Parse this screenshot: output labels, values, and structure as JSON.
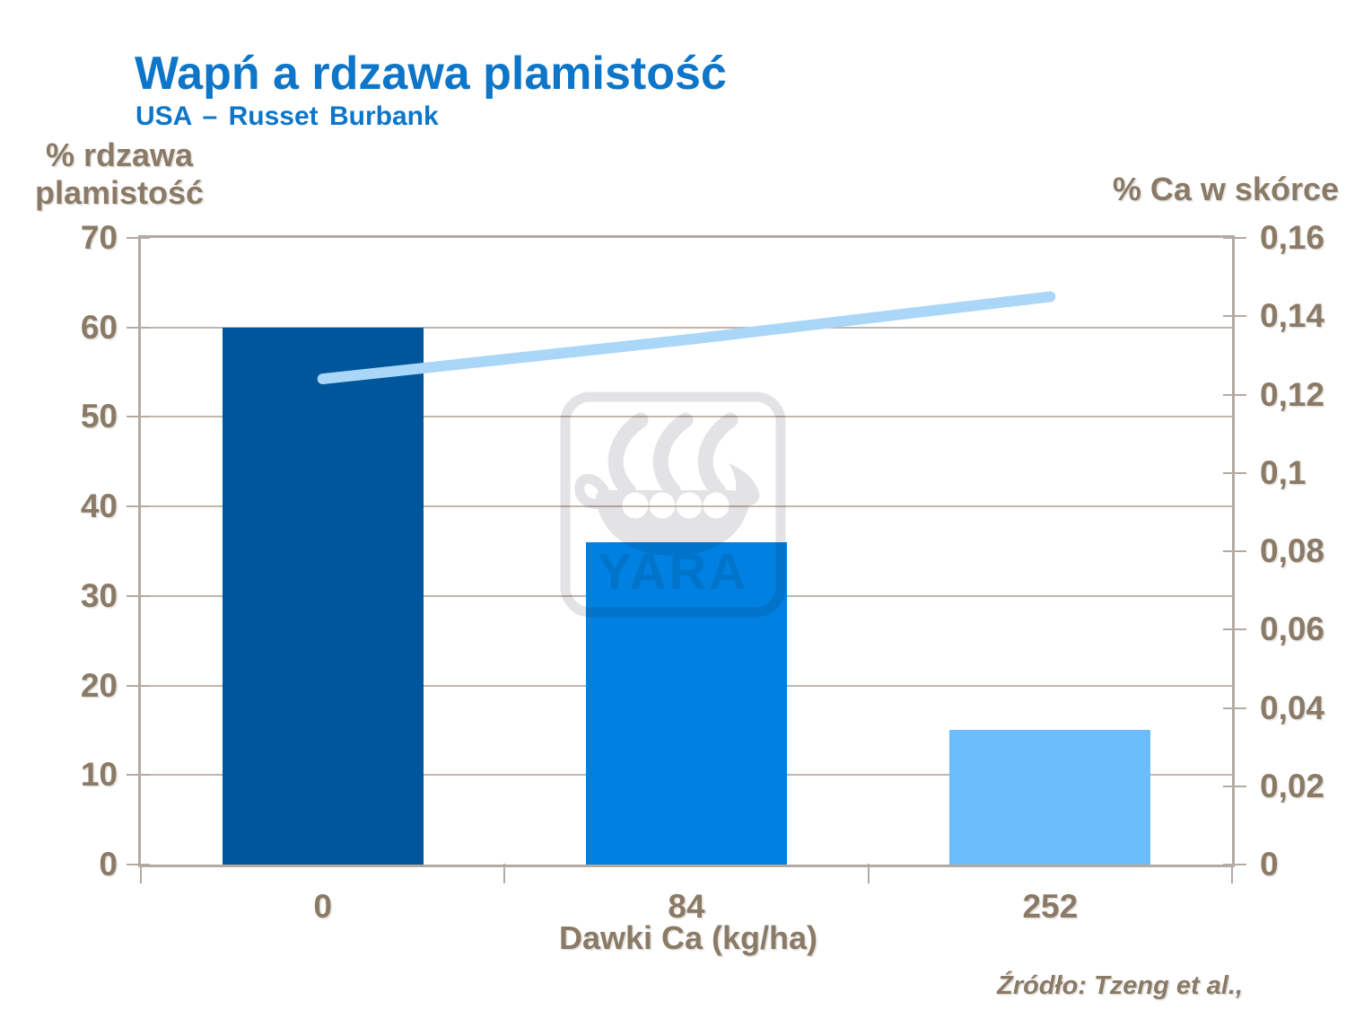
{
  "header": {
    "title": "Wapń a rdzawa plamistość",
    "subtitle": "USA – Russet Burbank"
  },
  "axes": {
    "left_title_line1": "% rdzawa",
    "left_title_line2": "plamistość",
    "right_title": "% Ca w skórce"
  },
  "source_note": "Źródło: Tzeng et al.,",
  "watermark": {
    "label": "YARA"
  },
  "colors": {
    "title_blue": "#0e76c8",
    "label_brown": "#8a7a66",
    "plot_border": "#b3aaa2",
    "gridline": "#c0b7ad",
    "bar_dark_blue": "#00569b",
    "bar_medium_blue": "#0081e2",
    "bar_light_blue": "#6bbcfa",
    "line_pale_blue": "#aad6f8",
    "watermark_gray": "#e3e3e5"
  },
  "chart_data": {
    "type": "combo",
    "categories": [
      "0",
      "84",
      "252"
    ],
    "series": [
      {
        "name": "% rdzawa plamistość",
        "type": "bar",
        "axis": "left",
        "values": [
          60,
          36,
          15
        ],
        "bar_colors": [
          "#00569b",
          "#0081e2",
          "#6bbcfa"
        ]
      },
      {
        "name": "% Ca w skórce",
        "type": "line",
        "axis": "right",
        "values": [
          0.124,
          0.134,
          0.145
        ],
        "color": "#aad6f8",
        "stroke_width": 12
      }
    ],
    "left_axis": {
      "min": 0,
      "max": 70,
      "tick_step": 10,
      "tick_labels": [
        "0",
        "10",
        "20",
        "30",
        "40",
        "50",
        "60",
        "70"
      ]
    },
    "right_axis": {
      "min": 0,
      "max": 0.16,
      "tick_step": 0.02,
      "tick_labels": [
        "0",
        "0,02",
        "0,04",
        "0,06",
        "0,08",
        "0,1",
        "0,12",
        "0,14",
        "0,16"
      ]
    },
    "x_axis": {
      "title": "Dawki Ca (kg/ha)"
    },
    "grid": {
      "horizontal_at_left_values": [
        10,
        20,
        30,
        40,
        50,
        60
      ]
    },
    "legend": "none"
  }
}
